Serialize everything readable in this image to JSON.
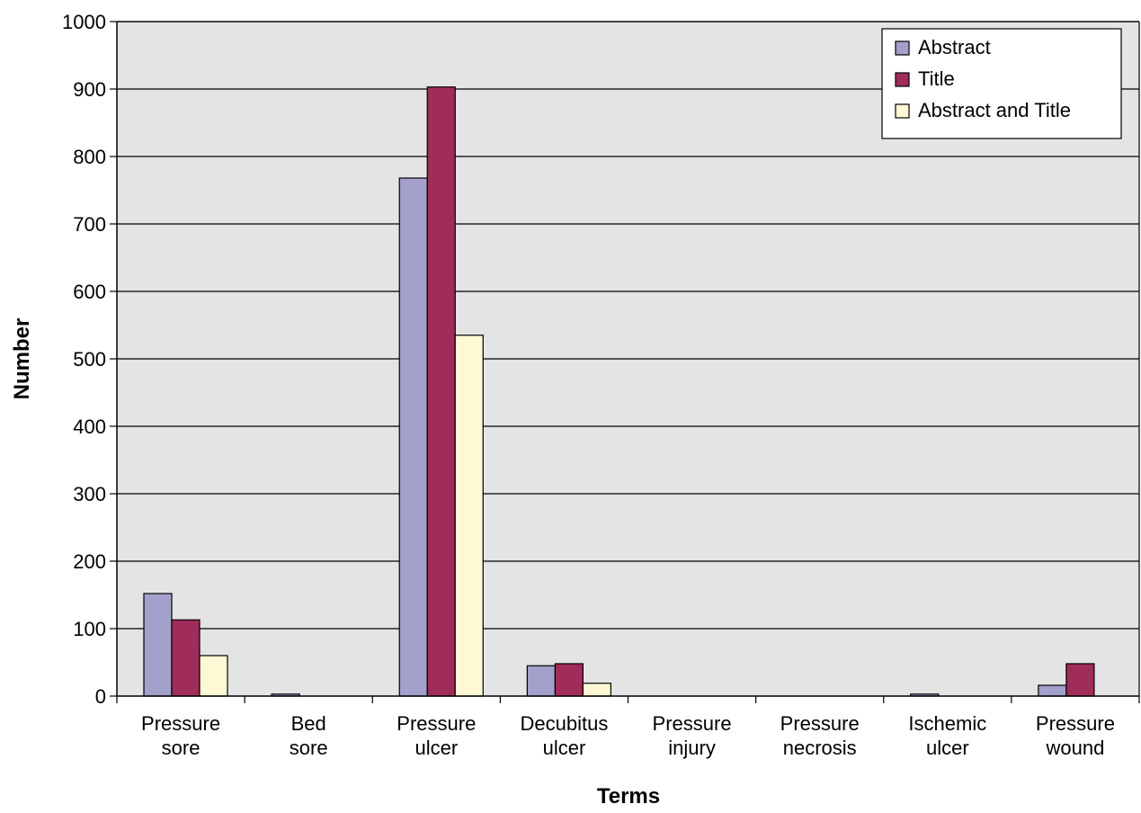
{
  "chart_data": {
    "type": "bar",
    "title": "",
    "xlabel": "Terms",
    "ylabel": "Number",
    "ylim": [
      0,
      1000
    ],
    "yticks": [
      0,
      100,
      200,
      300,
      400,
      500,
      600,
      700,
      800,
      900,
      1000
    ],
    "grid": true,
    "legend_position": "top-right",
    "categories": [
      [
        "Pressure",
        "sore"
      ],
      [
        "Bed",
        "sore"
      ],
      [
        "Pressure",
        "ulcer"
      ],
      [
        "Decubitus",
        "ulcer"
      ],
      [
        "Pressure",
        "injury"
      ],
      [
        "Pressure",
        "necrosis"
      ],
      [
        "Ischemic",
        "ulcer"
      ],
      [
        "Pressure",
        "wound"
      ]
    ],
    "series": [
      {
        "name": "Abstract",
        "color": "#a4a0cc",
        "values": [
          152,
          3,
          768,
          45,
          0,
          0,
          3,
          16
        ]
      },
      {
        "name": "Title",
        "color": "#a02c5a",
        "values": [
          113,
          0,
          903,
          48,
          0,
          0,
          0,
          48
        ]
      },
      {
        "name": "Abstract and Title",
        "color": "#fff8d4",
        "values": [
          60,
          0,
          535,
          19,
          0,
          0,
          0,
          0
        ]
      }
    ],
    "plot_background": "#e4e4e4"
  }
}
